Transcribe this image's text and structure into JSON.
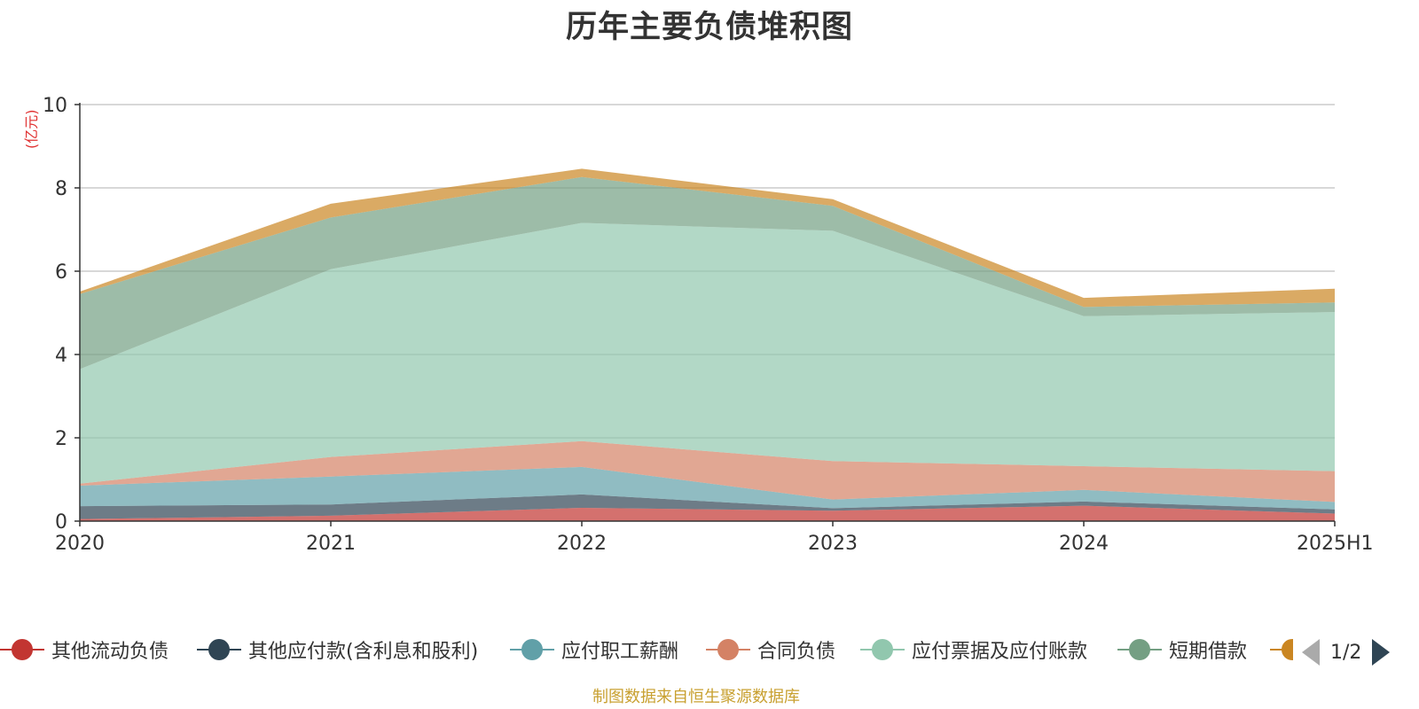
{
  "chart_data": {
    "type": "area",
    "title": "历年主要负债堆积图",
    "unit_label": "(亿元)",
    "categories": [
      "2020",
      "2021",
      "2022",
      "2023",
      "2024",
      "2025H1"
    ],
    "ylim": [
      0,
      10
    ],
    "yticks": [
      0,
      2,
      4,
      6,
      8,
      10
    ],
    "grid": true,
    "stacked": true,
    "series": [
      {
        "name": "其他流动负债",
        "color": "#c23531",
        "values": [
          0.05,
          0.13,
          0.32,
          0.25,
          0.37,
          0.18
        ]
      },
      {
        "name": "其他应付款(含利息和股利)",
        "color": "#2f4554",
        "values": [
          0.31,
          0.27,
          0.32,
          0.06,
          0.1,
          0.1
        ]
      },
      {
        "name": "应付职工薪酬",
        "color": "#61a0a8",
        "values": [
          0.49,
          0.67,
          0.66,
          0.21,
          0.28,
          0.18
        ]
      },
      {
        "name": "合同负债",
        "color": "#d48265",
        "values": [
          0.05,
          0.47,
          0.62,
          0.92,
          0.57,
          0.74
        ]
      },
      {
        "name": "应付票据及应付账款",
        "color": "#91c7ae",
        "values": [
          2.75,
          4.51,
          5.24,
          5.53,
          3.6,
          3.82
        ]
      },
      {
        "name": "短期借款",
        "color": "#749f83",
        "values": [
          1.8,
          1.24,
          1.1,
          0.6,
          0.22,
          0.23
        ]
      },
      {
        "name": "",
        "color": "#ca8622",
        "values": [
          0.06,
          0.33,
          0.2,
          0.16,
          0.22,
          0.33
        ]
      }
    ]
  },
  "legend": {
    "page": "1/2"
  },
  "footer": {
    "source": "制图数据来自恒生聚源数据库"
  }
}
